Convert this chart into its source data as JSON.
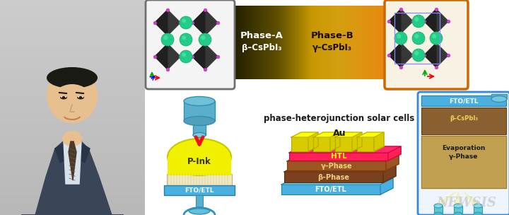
{
  "fig_width": 7.2,
  "fig_height": 3.04,
  "dpi": 100,
  "bg_color": "#ffffff",
  "phase_A_label": "Phase-A",
  "phase_A_sub": "β–CsPbI₃",
  "phase_B_label": "Phase-B",
  "phase_B_sub": "γ–CsPbI₃",
  "phj_label": "phase-heterojunction solar cells",
  "p_ink_label": "P-Ink",
  "fto_etl_label": "FTO/ETL",
  "right_labels": {
    "fto": "FTO/ETL",
    "beta": "β–CsPbI₃",
    "evap": "Evaporation",
    "gamma": "γ–Phase"
  },
  "newsis_text": "NEWSIS"
}
